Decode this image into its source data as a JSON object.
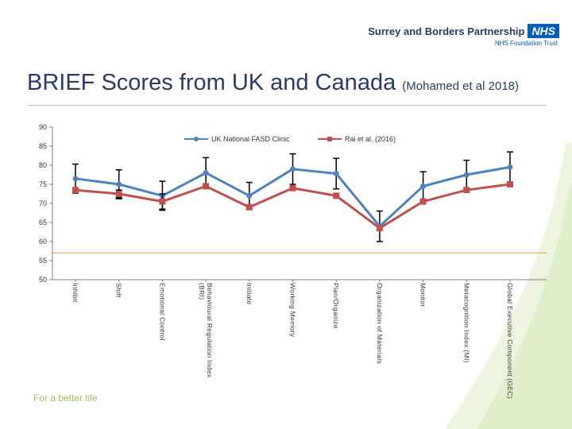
{
  "brand": {
    "organisation": "Surrey and Borders Partnership",
    "nhs_logo": "NHS",
    "trust": "NHS Foundation Trust",
    "tagline": "For a better life",
    "colors": {
      "primary": "#2b3a67",
      "nhs_blue": "#005eb8",
      "accent_green": "#9cc35a"
    }
  },
  "slide": {
    "title": "BRIEF Scores from UK and Canada",
    "subtitle": "(Mohamed et al 2018)"
  },
  "chart_data": {
    "type": "line",
    "categories": [
      "Inhibit",
      "Shift",
      "Emotional Control",
      "Behavioural Regulation Index (BRI)",
      "Initiate",
      "Working Memory",
      "Plan/Organize",
      "Organization of Materials",
      "Monitor",
      "Metacognition Index (MI)",
      "Global Executive Component (GEC)"
    ],
    "ylim": [
      50,
      90
    ],
    "yticks": [
      "50",
      "55",
      "60",
      "65",
      "70",
      "75",
      "80",
      "85",
      "90"
    ],
    "legend_position": "top",
    "series": [
      {
        "name": "UK National FASD Clinic",
        "color": "#4f81bd",
        "marker": "circle",
        "values": [
          76.5,
          75,
          72,
          78,
          72,
          79,
          77.8,
          64,
          74.5,
          77.5,
          79.5
        ],
        "error": [
          3.8,
          3.8,
          3.8,
          4,
          3.5,
          4,
          4,
          4,
          3.8,
          3.8,
          4
        ]
      },
      {
        "name": "Rai et al. (2016)",
        "color": "#c0504d",
        "marker": "square",
        "values": [
          73.5,
          72.5,
          70.5,
          74.5,
          69,
          74,
          72,
          63.5,
          70.5,
          73.5,
          75
        ],
        "error": [
          0,
          1,
          2,
          0,
          0,
          0,
          0,
          0,
          0,
          0,
          0
        ]
      }
    ],
    "grid": false
  }
}
